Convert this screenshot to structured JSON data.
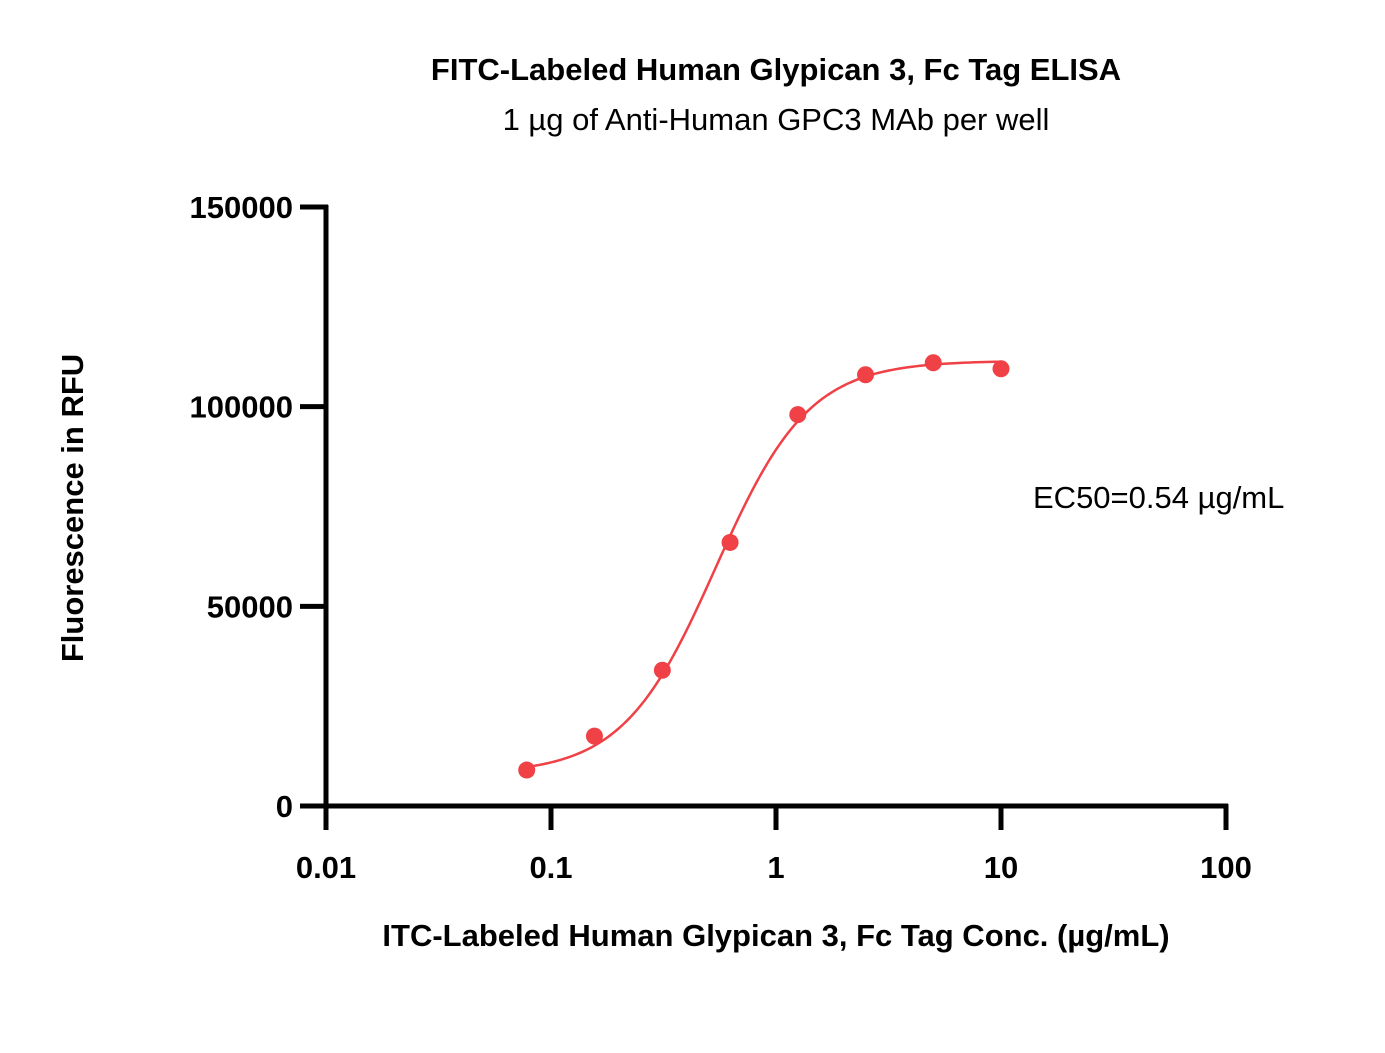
{
  "chart_data": {
    "type": "scatter",
    "title": "FITC-Labeled Human Glypican 3, Fc Tag ELISA",
    "subtitle": "1 µg of Anti-Human GPC3 MAb per well",
    "xlabel": "ITC-Labeled Human Glypican 3, Fc Tag Conc. (µg/mL)",
    "ylabel": "Fluorescence in RFU",
    "x_scale": "log",
    "xlim": [
      0.01,
      100
    ],
    "ylim": [
      0,
      150000
    ],
    "x_ticks": [
      0.01,
      0.1,
      1,
      10,
      100
    ],
    "x_tick_labels": [
      "0.01",
      "0.1",
      "1",
      "10",
      "100"
    ],
    "y_ticks": [
      0,
      50000,
      100000,
      150000
    ],
    "y_tick_labels": [
      "0",
      "50000",
      "100000",
      "150000"
    ],
    "grid": false,
    "color": "#ef4146",
    "series": [
      {
        "x": [
          0.078,
          0.156,
          0.3125,
          0.625,
          1.25,
          2.5,
          5,
          10
        ],
        "y": [
          9000,
          17500,
          34000,
          66000,
          98000,
          108000,
          111000,
          109500
        ],
        "fit": "4PL",
        "fit_params": {
          "bottom": 8000,
          "top": 111500,
          "ec50": 0.54,
          "hill": 2.1
        }
      }
    ],
    "annotations": [
      {
        "text": "EC50=0.54  µg/mL"
      }
    ]
  }
}
